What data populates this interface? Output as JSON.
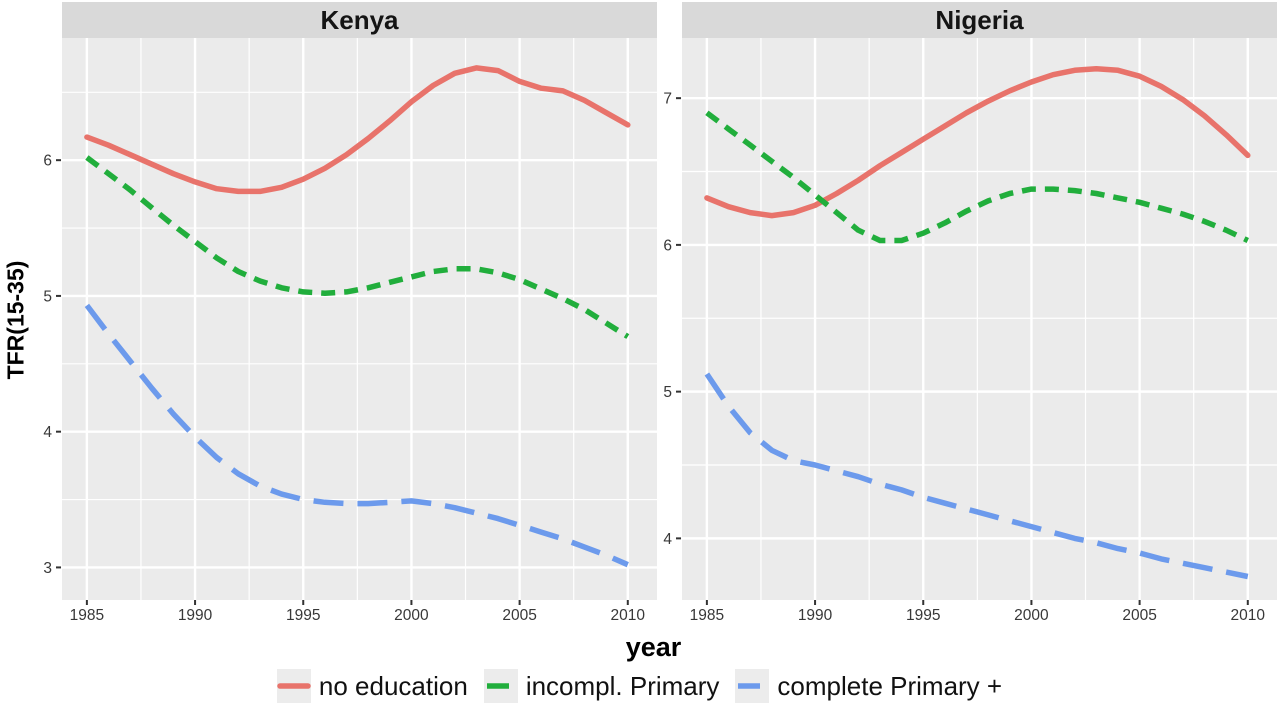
{
  "figure": {
    "ylabel": "TFR(15-35)",
    "xlabel": "year"
  },
  "legend": {
    "position": "bottom",
    "items": [
      {
        "label": "no education",
        "color": "#e8736b",
        "line_style": "solid"
      },
      {
        "label": "incompl. Primary",
        "color": "#21ae3c",
        "line_style": "dashed-short"
      },
      {
        "label": "complete Primary +",
        "color": "#6c9aec",
        "line_style": "dashed-long"
      }
    ]
  },
  "style": {
    "panel_bg": "#ebebeb",
    "strip_bg": "#d9d9d9",
    "grid_color": "#ffffff",
    "tick_color": "#333333",
    "tick_label_color": "#383838"
  },
  "chart_data": [
    {
      "type": "line",
      "facet": "Kenya",
      "xlabel": "year",
      "ylabel": "TFR(15-35)",
      "grid": true,
      "xlim": [
        1983.85,
        2011.35
      ],
      "ylim": [
        2.76,
        6.9
      ],
      "xticks": [
        1985,
        1990,
        1995,
        2000,
        2005,
        2010
      ],
      "yticks": [
        3,
        4,
        5,
        6
      ],
      "x": [
        1985,
        1986,
        1987,
        1988,
        1989,
        1990,
        1991,
        1992,
        1993,
        1994,
        1995,
        1996,
        1997,
        1998,
        1999,
        2000,
        2001,
        2002,
        2003,
        2004,
        2005,
        2006,
        2007,
        2008,
        2009,
        2010
      ],
      "series": [
        {
          "name": "no education",
          "values": [
            6.17,
            6.11,
            6.04,
            5.97,
            5.9,
            5.84,
            5.79,
            5.77,
            5.77,
            5.8,
            5.86,
            5.94,
            6.04,
            6.16,
            6.29,
            6.43,
            6.55,
            6.64,
            6.68,
            6.66,
            6.58,
            6.53,
            6.51,
            6.44,
            6.35,
            6.26
          ]
        },
        {
          "name": "incompl. Primary",
          "values": [
            6.02,
            5.9,
            5.78,
            5.65,
            5.52,
            5.4,
            5.28,
            5.18,
            5.11,
            5.06,
            5.03,
            5.02,
            5.03,
            5.06,
            5.1,
            5.14,
            5.18,
            5.2,
            5.2,
            5.17,
            5.12,
            5.05,
            4.98,
            4.9,
            4.8,
            4.7
          ]
        },
        {
          "name": "complete Primary +",
          "values": [
            4.93,
            4.72,
            4.52,
            4.32,
            4.13,
            3.96,
            3.81,
            3.69,
            3.6,
            3.54,
            3.5,
            3.48,
            3.47,
            3.47,
            3.48,
            3.49,
            3.47,
            3.44,
            3.4,
            3.36,
            3.31,
            3.26,
            3.21,
            3.15,
            3.09,
            3.02
          ]
        }
      ]
    },
    {
      "type": "line",
      "facet": "Nigeria",
      "xlabel": "year",
      "ylabel": "TFR(15-35)",
      "grid": true,
      "xlim": [
        1983.85,
        2011.35
      ],
      "ylim": [
        3.58,
        7.41
      ],
      "xticks": [
        1985,
        1990,
        1995,
        2000,
        2005,
        2010
      ],
      "yticks": [
        4,
        5,
        6,
        7
      ],
      "x": [
        1985,
        1986,
        1987,
        1988,
        1989,
        1990,
        1991,
        1992,
        1993,
        1994,
        1995,
        1996,
        1997,
        1998,
        1999,
        2000,
        2001,
        2002,
        2003,
        2004,
        2005,
        2006,
        2007,
        2008,
        2009,
        2010
      ],
      "series": [
        {
          "name": "no education",
          "values": [
            6.32,
            6.26,
            6.22,
            6.2,
            6.22,
            6.27,
            6.35,
            6.44,
            6.54,
            6.63,
            6.72,
            6.81,
            6.9,
            6.98,
            7.05,
            7.11,
            7.16,
            7.19,
            7.2,
            7.19,
            7.15,
            7.08,
            6.99,
            6.88,
            6.75,
            6.61
          ]
        },
        {
          "name": "incompl. Primary",
          "values": [
            6.9,
            6.79,
            6.68,
            6.57,
            6.46,
            6.34,
            6.22,
            6.1,
            6.03,
            6.03,
            6.08,
            6.15,
            6.23,
            6.3,
            6.35,
            6.38,
            6.38,
            6.37,
            6.35,
            6.32,
            6.29,
            6.25,
            6.21,
            6.16,
            6.1,
            6.03
          ]
        },
        {
          "name": "complete Primary +",
          "values": [
            5.12,
            4.9,
            4.72,
            4.6,
            4.53,
            4.5,
            4.46,
            4.42,
            4.37,
            4.33,
            4.28,
            4.24,
            4.2,
            4.16,
            4.12,
            4.08,
            4.04,
            4.0,
            3.97,
            3.93,
            3.9,
            3.86,
            3.83,
            3.8,
            3.77,
            3.74
          ]
        }
      ]
    }
  ]
}
